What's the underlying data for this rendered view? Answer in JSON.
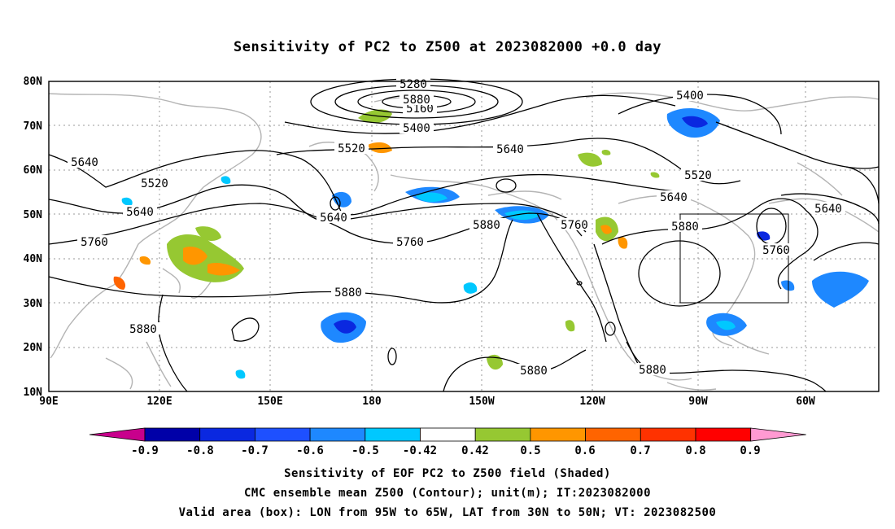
{
  "title": "Sensitivity of PC2 to Z500 at 2023082000 +0.0 day",
  "lat_labels": [
    "80N",
    "70N",
    "60N",
    "50N",
    "40N",
    "30N",
    "20N",
    "10N"
  ],
  "lon_labels": [
    "90E",
    "120E",
    "150E",
    "180",
    "150W",
    "120W",
    "90W",
    "60W"
  ],
  "colorbar": {
    "labels": [
      "-0.9",
      "-0.8",
      "-0.7",
      "-0.6",
      "-0.5",
      "-0.42",
      "0.42",
      "0.5",
      "0.6",
      "0.7",
      "0.8",
      "0.9"
    ],
    "colors": [
      "#c8008c",
      "#0000a8",
      "#0a28e0",
      "#1e50ff",
      "#1e88ff",
      "#00c8ff",
      "#ffffff",
      "#96c832",
      "#ff9600",
      "#ff6400",
      "#ff3200",
      "#ff0000",
      "#ff9ad2"
    ]
  },
  "contour_labels": [
    {
      "text": "5280"
    },
    {
      "text": "5160"
    },
    {
      "text": "5400"
    },
    {
      "text": "5520"
    },
    {
      "text": "5640"
    },
    {
      "text": "5400"
    },
    {
      "text": "5640"
    },
    {
      "text": "5520"
    },
    {
      "text": "5640"
    },
    {
      "text": "5640"
    },
    {
      "text": "5760"
    },
    {
      "text": "5760"
    },
    {
      "text": "5640"
    },
    {
      "text": "5880"
    },
    {
      "text": "5760"
    },
    {
      "text": "5880"
    },
    {
      "text": "5520"
    },
    {
      "text": "5640"
    },
    {
      "text": "5880"
    },
    {
      "text": "5760"
    },
    {
      "text": "5880"
    },
    {
      "text": "5880"
    },
    {
      "text": "5880"
    },
    {
      "text": "5880"
    }
  ],
  "footer": {
    "line1": "Sensitivity of EOF PC2 to Z500 field (Shaded)",
    "line2": "CMC ensemble mean Z500 (Contour); unit(m); IT:2023082000",
    "line3": "Valid area (box): LON from 95W to 65W, LAT from 30N to 50N; VT: 2023082500"
  }
}
